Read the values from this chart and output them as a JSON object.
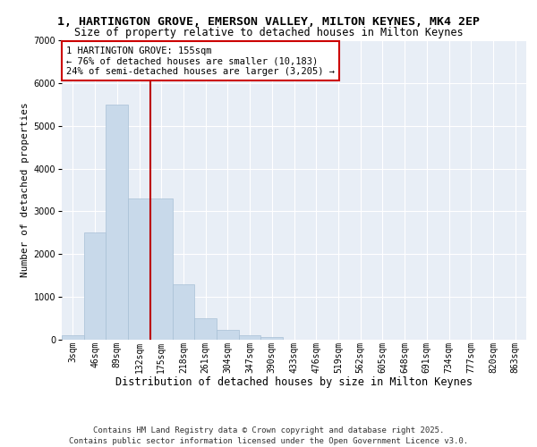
{
  "title1": "1, HARTINGTON GROVE, EMERSON VALLEY, MILTON KEYNES, MK4 2EP",
  "title2": "Size of property relative to detached houses in Milton Keynes",
  "xlabel": "Distribution of detached houses by size in Milton Keynes",
  "ylabel": "Number of detached properties",
  "bar_labels": [
    "3sqm",
    "46sqm",
    "89sqm",
    "132sqm",
    "175sqm",
    "218sqm",
    "261sqm",
    "304sqm",
    "347sqm",
    "390sqm",
    "433sqm",
    "476sqm",
    "519sqm",
    "562sqm",
    "605sqm",
    "648sqm",
    "691sqm",
    "734sqm",
    "777sqm",
    "820sqm",
    "863sqm"
  ],
  "bar_values": [
    100,
    2500,
    5500,
    3300,
    3300,
    1300,
    500,
    220,
    100,
    70,
    0,
    0,
    0,
    0,
    0,
    0,
    0,
    0,
    0,
    0,
    0
  ],
  "bar_color": "#c8d9ea",
  "bar_edge_color": "#a8c0d6",
  "vline_x": 3.5,
  "vline_color": "#bb0000",
  "annotation_text": "1 HARTINGTON GROVE: 155sqm\n← 76% of detached houses are smaller (10,183)\n24% of semi-detached houses are larger (3,205) →",
  "annotation_box_color": "#ffffff",
  "annotation_box_edge": "#cc0000",
  "ylim": [
    0,
    7000
  ],
  "yticks": [
    0,
    1000,
    2000,
    3000,
    4000,
    5000,
    6000,
    7000
  ],
  "background_color": "#e8eef6",
  "grid_color": "#ffffff",
  "footer": "Contains HM Land Registry data © Crown copyright and database right 2025.\nContains public sector information licensed under the Open Government Licence v3.0.",
  "title1_fontsize": 9.5,
  "title2_fontsize": 8.5,
  "xlabel_fontsize": 8.5,
  "ylabel_fontsize": 8,
  "tick_fontsize": 7,
  "annot_fontsize": 7.5,
  "footer_fontsize": 6.5
}
